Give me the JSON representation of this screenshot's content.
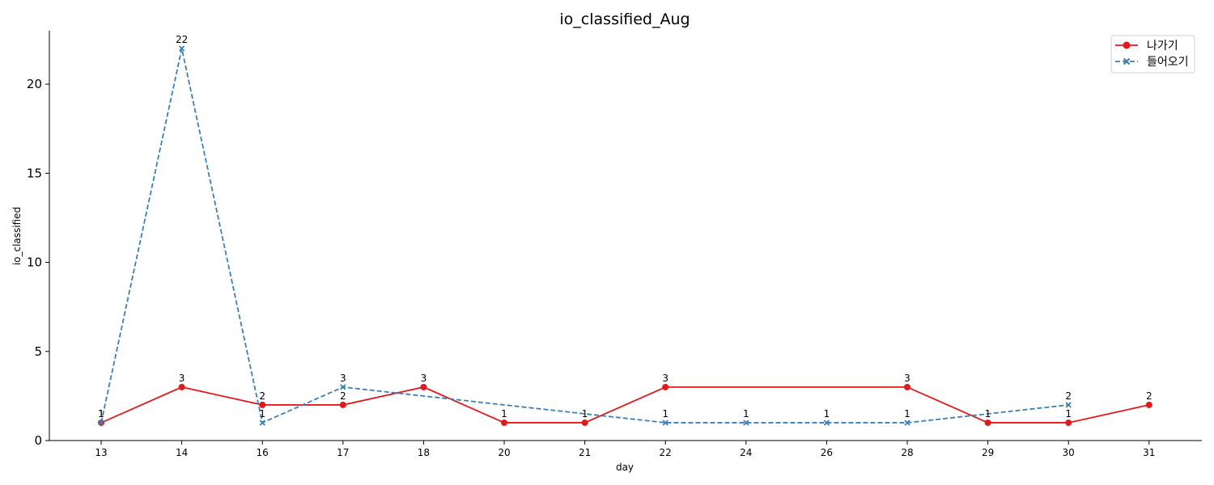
{
  "chart_data": {
    "type": "line",
    "title": "io_classified_Aug",
    "xlabel": "day",
    "ylabel": "io_classified",
    "categories": [
      "13",
      "14",
      "16",
      "17",
      "18",
      "20",
      "21",
      "22",
      "24",
      "26",
      "28",
      "29",
      "30",
      "31"
    ],
    "ylim": [
      0,
      23
    ],
    "yticks": [
      0,
      5,
      10,
      15,
      20
    ],
    "grid": false,
    "legend_position": "top-right",
    "series": [
      {
        "name": "나가기",
        "color": "#e31a1c",
        "linestyle": "solid",
        "marker": "circle",
        "points": [
          {
            "x": "13",
            "y": 1
          },
          {
            "x": "14",
            "y": 3
          },
          {
            "x": "16",
            "y": 2
          },
          {
            "x": "17",
            "y": 2
          },
          {
            "x": "18",
            "y": 3
          },
          {
            "x": "20",
            "y": 1
          },
          {
            "x": "21",
            "y": 1
          },
          {
            "x": "22",
            "y": 3
          },
          {
            "x": "28",
            "y": 3
          },
          {
            "x": "29",
            "y": 1
          },
          {
            "x": "30",
            "y": 1
          },
          {
            "x": "31",
            "y": 2
          }
        ]
      },
      {
        "name": "들어오기",
        "color": "#3a7fb8",
        "linestyle": "dashed",
        "marker": "x",
        "points": [
          {
            "x": "13",
            "y": 1
          },
          {
            "x": "14",
            "y": 22
          },
          {
            "x": "16",
            "y": 1
          },
          {
            "x": "17",
            "y": 3
          },
          {
            "x": "22",
            "y": 1
          },
          {
            "x": "24",
            "y": 1
          },
          {
            "x": "26",
            "y": 1
          },
          {
            "x": "28",
            "y": 1
          },
          {
            "x": "30",
            "y": 2
          }
        ]
      }
    ],
    "data_labels": [
      {
        "x": "13",
        "text": "1",
        "series": 0
      },
      {
        "x": "14",
        "text": "3",
        "series": 0
      },
      {
        "x": "16",
        "text": "2",
        "series": 0
      },
      {
        "x": "17",
        "text": "2",
        "series": 0
      },
      {
        "x": "18",
        "text": "3",
        "series": 0
      },
      {
        "x": "20",
        "text": "1",
        "series": 0
      },
      {
        "x": "21",
        "text": "1",
        "series": 0
      },
      {
        "x": "22",
        "text": "3",
        "series": 0
      },
      {
        "x": "28",
        "text": "3",
        "series": 0
      },
      {
        "x": "29",
        "text": "1",
        "series": 0
      },
      {
        "x": "30",
        "text": "1",
        "series": 0
      },
      {
        "x": "31",
        "text": "2",
        "series": 0
      },
      {
        "x": "13",
        "text": "1",
        "series": 1
      },
      {
        "x": "14",
        "text": "22",
        "series": 1
      },
      {
        "x": "16",
        "text": "1",
        "series": 1
      },
      {
        "x": "17",
        "text": "3",
        "series": 1
      },
      {
        "x": "22",
        "text": "1",
        "series": 1
      },
      {
        "x": "24",
        "text": "1",
        "series": 1
      },
      {
        "x": "26",
        "text": "1",
        "series": 1
      },
      {
        "x": "28",
        "text": "1",
        "series": 1
      },
      {
        "x": "30",
        "text": "2",
        "series": 1
      }
    ]
  }
}
